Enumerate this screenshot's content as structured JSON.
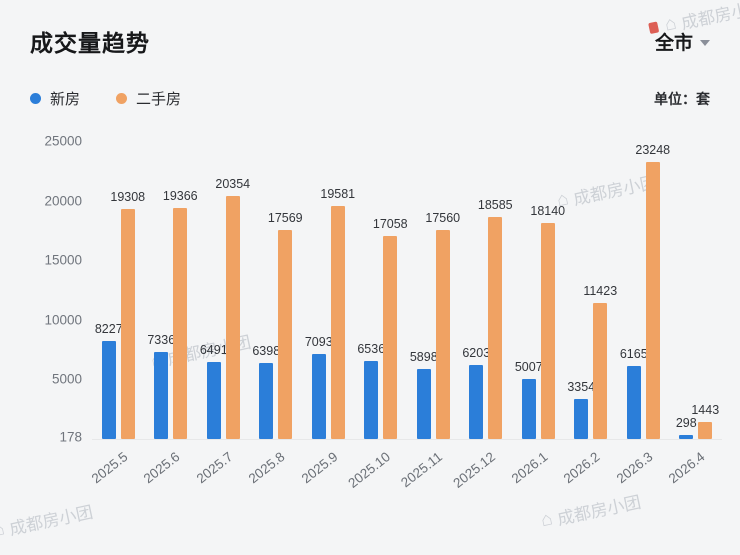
{
  "header": {
    "title": "成交量趋势",
    "scope": "全市"
  },
  "legend": {
    "items": [
      {
        "label": "新房",
        "color": "#2b7ed9"
      },
      {
        "label": "二手房",
        "color": "#f0a263"
      }
    ],
    "unit_label": "单位：套"
  },
  "watermark": {
    "icon": "⌂",
    "text": "成都房小团"
  },
  "chart_data": {
    "type": "bar",
    "title": "成交量趋势",
    "unit": "套",
    "categories": [
      "2025.5",
      "2025.6",
      "2025.7",
      "2025.8",
      "2025.9",
      "2025.10",
      "2025.11",
      "2025.12",
      "2026.1",
      "2026.2",
      "2026.3",
      "2026.4"
    ],
    "series": [
      {
        "name": "新房",
        "color": "#2b7ed9",
        "values": [
          8227,
          7336,
          6491,
          6398,
          7093,
          6536,
          5898,
          6203,
          5007,
          3354,
          6165,
          298
        ]
      },
      {
        "name": "二手房",
        "color": "#f0a263",
        "values": [
          19308,
          19366,
          20354,
          17569,
          19581,
          17058,
          17560,
          18585,
          18140,
          11423,
          23248,
          1443
        ]
      }
    ],
    "yticks": [
      178,
      5000,
      10000,
      15000,
      20000,
      25000
    ],
    "ylim": [
      0,
      25000
    ],
    "grid": false,
    "legend_position": "top-left"
  }
}
